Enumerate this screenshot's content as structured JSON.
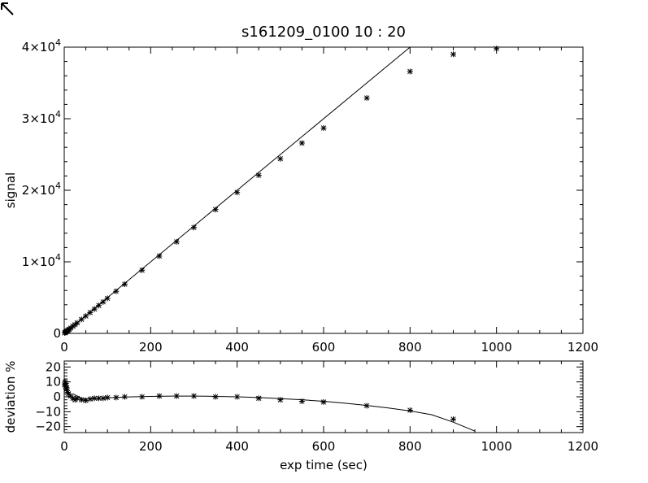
{
  "chart_data": [
    {
      "type": "scatter",
      "title": "s161209_0100 10 : 20",
      "xlabel": "",
      "ylabel": "signal",
      "xlim": [
        0,
        1200
      ],
      "ylim": [
        0,
        40000
      ],
      "x_ticks": [
        0,
        200,
        400,
        600,
        800,
        1000,
        1200
      ],
      "x_tick_labels": [
        "0",
        "200",
        "400",
        "600",
        "800",
        "1000",
        "1200"
      ],
      "y_ticks": [
        0,
        10000,
        20000,
        30000,
        40000
      ],
      "y_tick_labels": [
        {
          "mant": "0",
          "exp": ""
        },
        {
          "mant": "1×10",
          "exp": "4"
        },
        {
          "mant": "2×10",
          "exp": "4"
        },
        {
          "mant": "3×10",
          "exp": "4"
        },
        {
          "mant": "4×10",
          "exp": "4"
        }
      ],
      "series": [
        {
          "marker": "asterisk",
          "x": [
            1,
            2,
            3,
            4,
            5,
            6,
            8,
            10,
            12,
            15,
            20,
            25,
            30,
            40,
            50,
            60,
            70,
            80,
            90,
            100,
            120,
            140,
            180,
            220,
            260,
            300,
            350,
            400,
            450,
            500,
            550,
            600,
            700,
            800,
            900,
            1000
          ],
          "y": [
            60,
            110,
            160,
            220,
            260,
            320,
            400,
            500,
            600,
            750,
            1000,
            1220,
            1470,
            1950,
            2420,
            2910,
            3400,
            3900,
            4390,
            4900,
            5880,
            6870,
            8830,
            10800,
            12800,
            14800,
            17300,
            19700,
            22100,
            24400,
            26600,
            28700,
            32900,
            36600,
            39000,
            39800
          ]
        },
        {
          "style": "line",
          "x": [
            0,
            800
          ],
          "y": [
            0,
            40000
          ]
        }
      ]
    },
    {
      "type": "scatter",
      "xlabel": "exp time (sec)",
      "ylabel": "deviation %",
      "xlim": [
        0,
        1200
      ],
      "ylim": [
        -24,
        24
      ],
      "x_ticks": [
        0,
        200,
        400,
        600,
        800,
        1000,
        1200
      ],
      "x_tick_labels": [
        "0",
        "200",
        "400",
        "600",
        "800",
        "1000",
        "1200"
      ],
      "y_ticks": [
        -20,
        -10,
        0,
        10,
        20
      ],
      "y_tick_labels": [
        "−20",
        "−10",
        "0",
        "10",
        "20"
      ],
      "series": [
        {
          "marker": "asterisk",
          "x": [
            1,
            2,
            3,
            4,
            5,
            6,
            8,
            10,
            15,
            20,
            25,
            30,
            40,
            50,
            60,
            70,
            80,
            90,
            100,
            120,
            140,
            180,
            220,
            260,
            300,
            350,
            400,
            450,
            500,
            550,
            600,
            700,
            800,
            900
          ],
          "y": [
            8,
            10,
            7,
            9,
            5,
            6,
            3,
            2,
            0.5,
            -1,
            -2,
            -1,
            -2,
            -2.5,
            -1.5,
            -1,
            -1,
            -1,
            -0.5,
            -0.5,
            0,
            0,
            0.5,
            0.5,
            0.5,
            0,
            0,
            -1,
            -2,
            -3,
            -3.5,
            -6,
            -9,
            -15
          ]
        },
        {
          "style": "line",
          "x": [
            20,
            40,
            60,
            100,
            150,
            200,
            250,
            300,
            350,
            400,
            450,
            500,
            550,
            600,
            650,
            700,
            750,
            800,
            850,
            900,
            950
          ],
          "y": [
            2,
            -1,
            -1.5,
            -0.7,
            -0.1,
            0.3,
            0.5,
            0.5,
            0.3,
            0,
            -0.5,
            -1.2,
            -2,
            -3,
            -4.3,
            -5.8,
            -7.5,
            -9.5,
            -12,
            -17,
            -23
          ]
        }
      ]
    }
  ],
  "cursor_icon": "arrow-cursor-icon"
}
